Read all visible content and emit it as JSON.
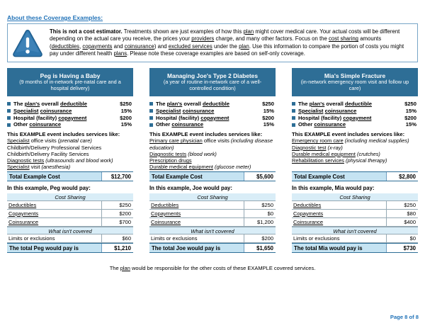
{
  "colors": {
    "header_blue": "#2e6e96",
    "light_blue": "#c5e3f2",
    "lighter_blue": "#d9edf7",
    "link_blue": "#2273b8",
    "box_border": "#78a5c8",
    "line_gray": "#95a9b4",
    "divider_blue": "#6f9ec0",
    "icon_blue": "#3077ad"
  },
  "page": {
    "heading": "About these Coverage Examples:",
    "footer_html": "The <u>plan</u> would be responsible for the other costs of these EXAMPLE covered services.",
    "page_number": "Page 8 of 8"
  },
  "notice": {
    "icon": "warning-triangle-icon",
    "text_html": "<b>This is not a cost estimator.</b> Treatments shown are just examples of how this <u>plan</u> might cover medical care. Your actual costs will be different depending on the actual care you receive, the prices your <u>providers</u> charge, and many other factors. Focus on the <u>cost sharing</u> amounts (<u>deductibles</u>, <u>copayments</u> and <u>coinsurance</u>) and <u>excluded services</u> under the <u>plan</u>. Use this information to compare the portion of costs you might pay under different health <u>plans</u>. Please note these coverage examples are based on self-only coverage."
  },
  "examples": [
    {
      "title": "Peg is Having a Baby",
      "subtitle": "(9 months of in-network pre-natal care and a hospital delivery)",
      "facts": [
        {
          "label_html": "The <u>plan's</u> overall <u>deductible</u>",
          "value": "$250"
        },
        {
          "label_html": "<u>Specialist</u> <u>coinsurance</u>",
          "value": "15%"
        },
        {
          "label_html": "Hospital (facility) <u>copayment</u>",
          "value": "$200"
        },
        {
          "label_html": "Other <u>coinsurance</u>",
          "value": "15%"
        }
      ],
      "services_heading": "This EXAMPLE event includes services like:",
      "services_html": [
        "<u>Specialist</u> office visits <i>(prenatal care)</i>",
        "Childbirth/Delivery Professional Services",
        "Childbirth/Delivery Facility Services",
        "<u>Diagnostic tests</u> <i>(ultrasounds and blood work)</i>",
        "<u>Specialist</u> visit <i>(anesthesia)</i>"
      ],
      "total_cost_label": "Total Example Cost",
      "total_cost_value": "$12,700",
      "pay_heading": "In this example, Peg would pay:",
      "cost_sharing_label": "Cost Sharing",
      "rows": [
        {
          "label_html": "<u>Deductibles</u>",
          "value": "$250"
        },
        {
          "label_html": "<u>Copayments</u>",
          "value": "$200"
        },
        {
          "label_html": "<u>Coinsurance</u>",
          "value": "$700"
        }
      ],
      "not_covered_label": "What isn't covered",
      "exclusions_row": {
        "label_html": "Limits or exclusions",
        "value": "$60"
      },
      "total_pay_label": "The total Peg would pay is",
      "total_pay_value": "$1,210"
    },
    {
      "title": "Managing Joe's Type 2 Diabetes",
      "subtitle": "(a year of routine in-network care of a well-controlled condition)",
      "facts": [
        {
          "label_html": "The <u>plan's</u> overall <u>deductible</u>",
          "value": "$250"
        },
        {
          "label_html": "<u>Specialist</u> <u>coinsurance</u>",
          "value": "15%"
        },
        {
          "label_html": "Hospital (facility) <u>copayment</u>",
          "value": "$200"
        },
        {
          "label_html": "Other <u>coinsurance</u>",
          "value": "15%"
        }
      ],
      "services_heading": "This EXAMPLE event includes services like:",
      "services_html": [
        "<u>Primary care physician</u> office visits <i>(including disease education)</i>",
        "<u>Diagnostic tests</u> <i>(blood work)</i>",
        "<u>Prescription drugs</u>",
        "<u>Durable medical equipment</u> <i>(glucose meter)</i>"
      ],
      "total_cost_label": "Total Example Cost",
      "total_cost_value": "$5,600",
      "pay_heading": "In this example, Joe would pay:",
      "cost_sharing_label": "Cost Sharing",
      "rows": [
        {
          "label_html": "<u>Deductibles</u>",
          "value": "$250"
        },
        {
          "label_html": "<u>Copayments</u>",
          "value": "$0"
        },
        {
          "label_html": "<u>Coinsurance</u>",
          "value": "$1,200"
        }
      ],
      "not_covered_label": "What isn't covered",
      "exclusions_row": {
        "label_html": "Limits or exclusions",
        "value": "$200"
      },
      "total_pay_label": "The total Joe would pay is",
      "total_pay_value": "$1,650"
    },
    {
      "title": "Mia's Simple Fracture",
      "subtitle": "(in-network emergency room visit and follow up care)",
      "facts": [
        {
          "label_html": "The <u>plan's</u> overall <u>deductible</u>",
          "value": "$250"
        },
        {
          "label_html": "<u>Specialist</u> <u>coinsurance</u>",
          "value": "15%"
        },
        {
          "label_html": "Hospital (facility) <u>copayment</u>",
          "value": "$200"
        },
        {
          "label_html": "Other <u>coinsurance</u>",
          "value": "15%"
        }
      ],
      "services_heading": "This EXAMPLE event includes services like:",
      "services_html": [
        "<u>Emergency room care</u> <i>(including medical supplies)</i>",
        "<u>Diagnostic test</u> <i>(x-ray)</i>",
        "<u>Durable medical equipment</u> <i>(crutches)</i>",
        "<u>Rehabilitation services</u> <i>(physical therapy)</i>"
      ],
      "total_cost_label": "Total Example Cost",
      "total_cost_value": "$2,800",
      "pay_heading": "In this example, Mia would pay:",
      "cost_sharing_label": "Cost Sharing",
      "rows": [
        {
          "label_html": "<u>Deductibles</u>",
          "value": "$250"
        },
        {
          "label_html": "<u>Copayments</u>",
          "value": "$80"
        },
        {
          "label_html": "<u>Coinsurance</u>",
          "value": "$400"
        }
      ],
      "not_covered_label": "What isn't covered",
      "exclusions_row": {
        "label_html": "Limits or exclusions",
        "value": "$0"
      },
      "total_pay_label": "The total Mia would pay is",
      "total_pay_value": "$730"
    }
  ]
}
